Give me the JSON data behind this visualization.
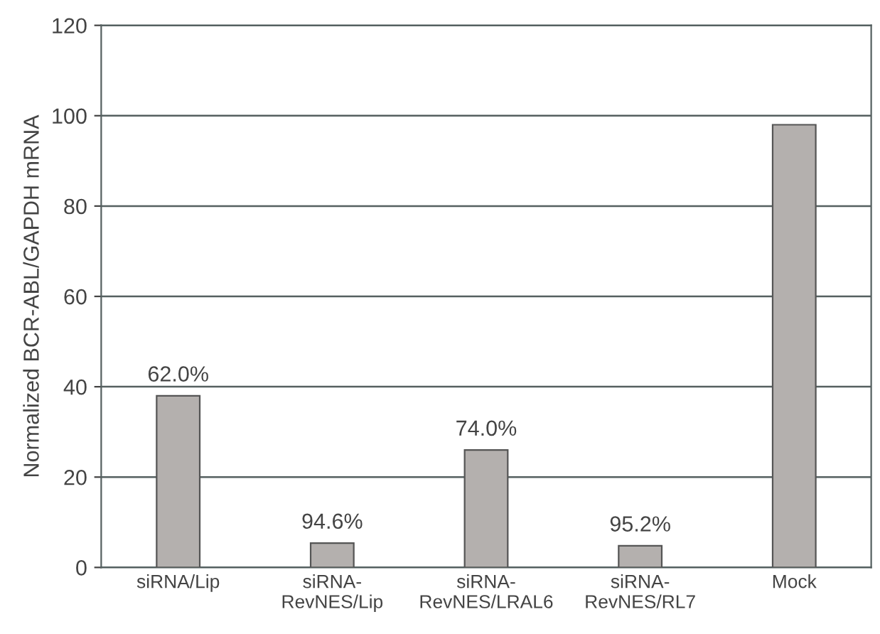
{
  "chart_data": {
    "type": "bar",
    "ylabel": "Normalized BCR-ABL/GAPDH mRNA",
    "categories": [
      "siRNA/Lip",
      "siRNA-\nRevNES/Lip",
      "siRNA-\nRevNES/LRAL6",
      "siRNA-\nRevNES/RL7",
      "Mock"
    ],
    "values": [
      38,
      5.4,
      26,
      4.8,
      98
    ],
    "color": "#b4b0ae",
    "ylim": [
      0,
      120
    ],
    "yticks": [
      0,
      20,
      40,
      60,
      80,
      100,
      120
    ],
    "grid": "y",
    "annotations": [
      {
        "text": "62.0%",
        "x": "siRNA/Lip",
        "y": 38
      },
      {
        "text": "94.6%",
        "x": "siRNA-\nRevNES/Lip",
        "y": 5.4
      },
      {
        "text": "74.0%",
        "x": "siRNA-\nRevNES/LRAL6",
        "y": 26
      },
      {
        "text": "95.2%",
        "x": "siRNA-\nRevNES/RL7",
        "y": 4.8
      }
    ]
  }
}
